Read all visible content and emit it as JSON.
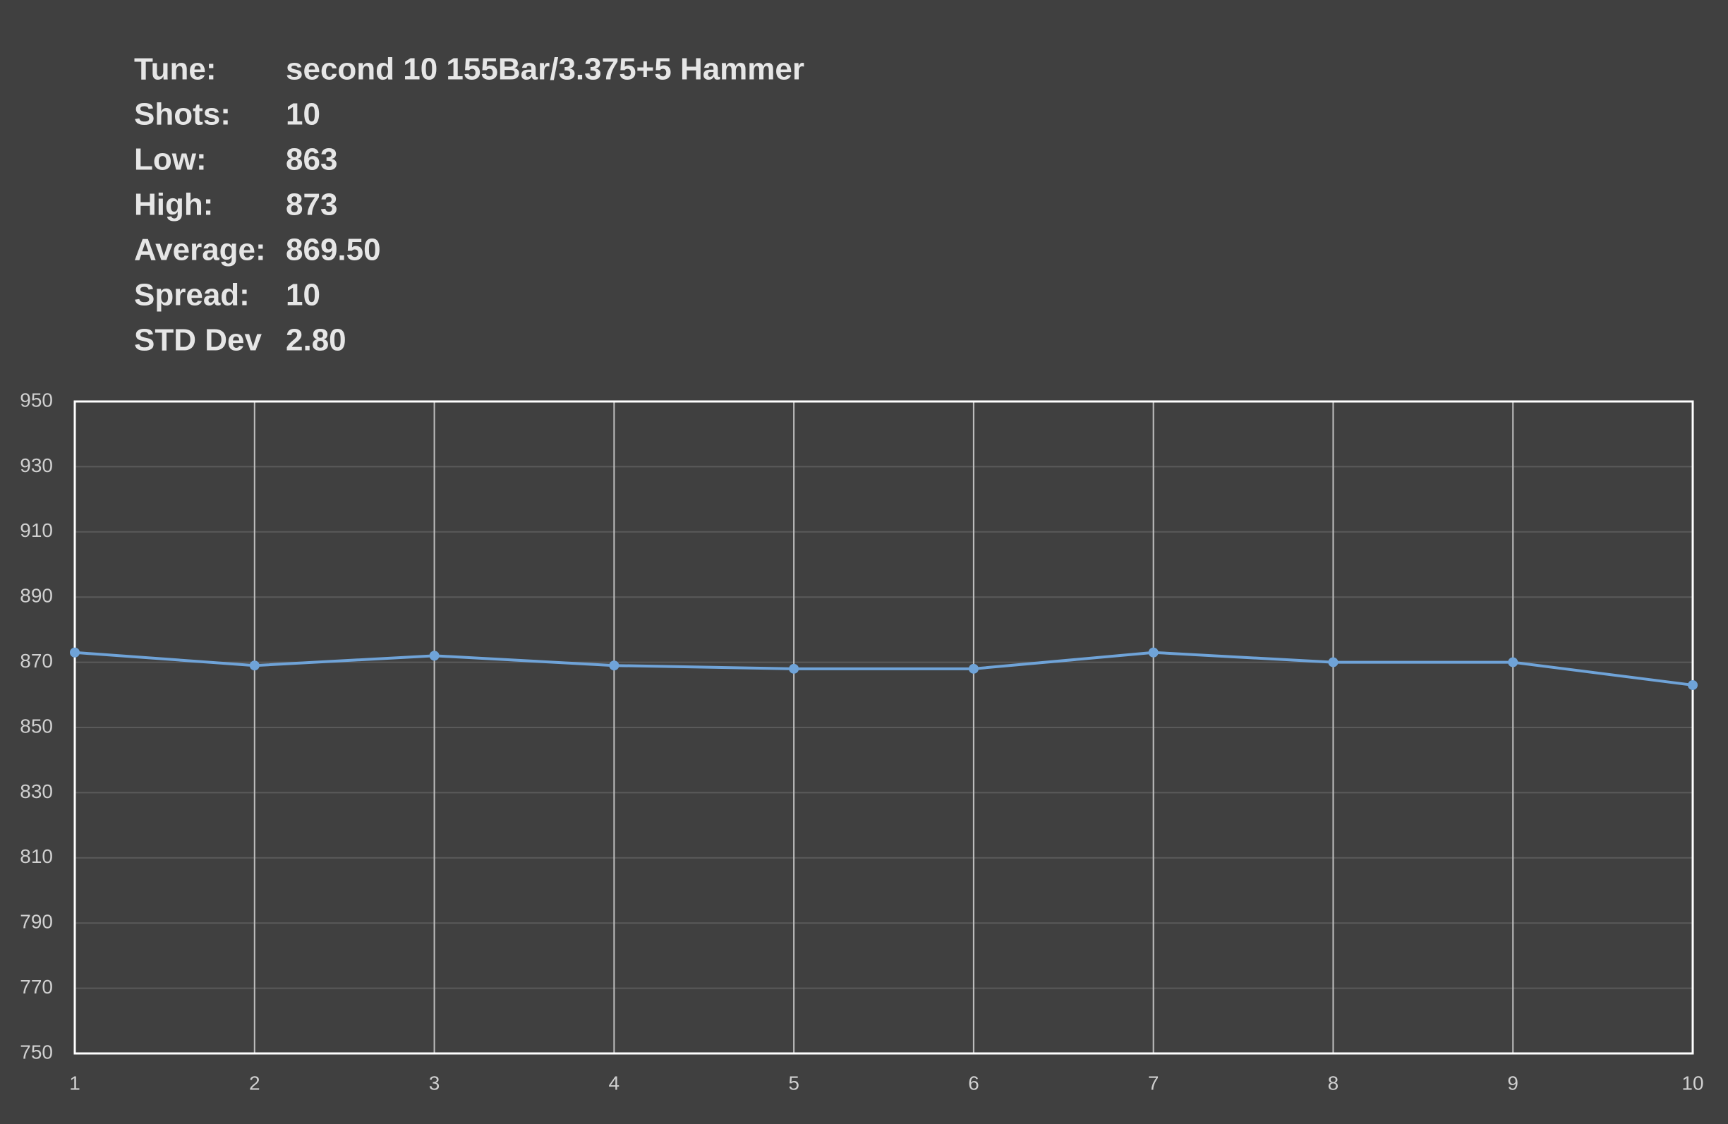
{
  "chart_data": {
    "type": "line",
    "stats": [
      {
        "label": "Tune:",
        "value": "second 10 155Bar/3.375+5 Hammer"
      },
      {
        "label": "Shots:",
        "value": "10"
      },
      {
        "label": "Low:",
        "value": "863"
      },
      {
        "label": "High:",
        "value": "873"
      },
      {
        "label": "Average:",
        "value": "869.50"
      },
      {
        "label": "Spread:",
        "value": "10"
      },
      {
        "label": "STD Dev",
        "value": "2.80"
      }
    ],
    "x": [
      1,
      2,
      3,
      4,
      5,
      6,
      7,
      8,
      9,
      10
    ],
    "series": [
      {
        "color": "#6fa3d8",
        "values": [
          873,
          869,
          872,
          869,
          868,
          868,
          873,
          870,
          870,
          863
        ]
      }
    ],
    "xlim": [
      1,
      10
    ],
    "xticks": [
      1,
      2,
      3,
      4,
      5,
      6,
      7,
      8,
      9,
      10
    ],
    "ylim": [
      750,
      950
    ],
    "yticks": [
      750,
      770,
      790,
      810,
      830,
      850,
      870,
      890,
      910,
      930,
      950
    ],
    "grid": true
  }
}
